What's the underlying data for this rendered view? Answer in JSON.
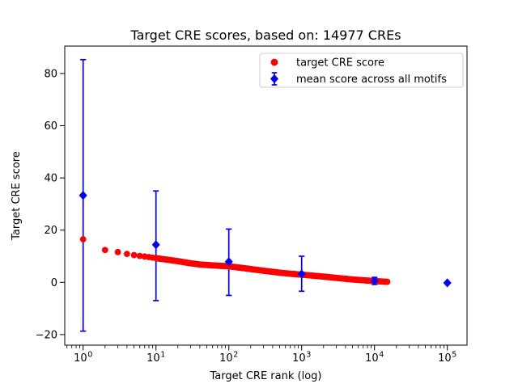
{
  "chart_data": {
    "type": "scatter",
    "title": "Target CRE scores, based on: 14977 CREs",
    "xlabel": "Target CRE rank (log)",
    "ylabel": "Target CRE score",
    "x_scale": "log",
    "grid": false,
    "xlim": [
      0.56,
      186000
    ],
    "ylim": [
      -24,
      90.5
    ],
    "x_ticks": [
      1,
      10,
      100,
      1000,
      10000,
      100000
    ],
    "x_tick_labels": [
      "10^0",
      "10^1",
      "10^2",
      "10^3",
      "10^4",
      "10^5"
    ],
    "y_ticks": [
      -20,
      0,
      20,
      40,
      60,
      80
    ],
    "n_cres": 14977,
    "series": [
      {
        "name": "target CRE score",
        "marker": "circle",
        "color": "#ff0000",
        "n_points": 14977,
        "anchor_points": [
          [
            1,
            16.5
          ],
          [
            2,
            12.4
          ],
          [
            3,
            11.6
          ],
          [
            4,
            10.9
          ],
          [
            5,
            10.45
          ],
          [
            6,
            10.1
          ],
          [
            7,
            9.9
          ],
          [
            8,
            9.7
          ],
          [
            9,
            9.45
          ],
          [
            10,
            9.25
          ],
          [
            15,
            8.6
          ],
          [
            20,
            8.1
          ],
          [
            30,
            7.3
          ],
          [
            40,
            6.85
          ],
          [
            60,
            6.5
          ],
          [
            100,
            6.15
          ],
          [
            200,
            5.1
          ],
          [
            300,
            4.45
          ],
          [
            500,
            3.7
          ],
          [
            700,
            3.3
          ],
          [
            1000,
            2.95
          ],
          [
            2000,
            2.2
          ],
          [
            3000,
            1.7
          ],
          [
            5000,
            1.1
          ],
          [
            7000,
            0.8
          ],
          [
            10000,
            0.5
          ],
          [
            14977,
            0.2
          ]
        ]
      },
      {
        "name": "mean score across all motifs",
        "marker": "diamond",
        "color": "#0000ff",
        "points": [
          {
            "rank": 1,
            "mean": 33.3,
            "err_low": -18.7,
            "err_high": 85.3
          },
          {
            "rank": 10,
            "mean": 14.4,
            "err_low": -7.0,
            "err_high": 35.0
          },
          {
            "rank": 100,
            "mean": 7.9,
            "err_low": -5.0,
            "err_high": 20.4
          },
          {
            "rank": 1000,
            "mean": 3.2,
            "err_low": -3.4,
            "err_high": 10.0
          },
          {
            "rank": 10000,
            "mean": 0.6,
            "err_low": -0.8,
            "err_high": 1.9
          },
          {
            "rank": 100000,
            "mean": -0.2,
            "err_low": -0.5,
            "err_high": 0.1
          }
        ]
      }
    ],
    "legend": {
      "position": "upper right",
      "entries": [
        {
          "label": "target CRE score",
          "marker": "circle",
          "color": "#ff0000"
        },
        {
          "label": "mean score across all motifs",
          "marker": "diamond-errorbar",
          "color": "#0000ff"
        }
      ]
    },
    "colors": {
      "dots": "#ff0000",
      "means": "#0000ff",
      "axes": "#000000",
      "legend_border": "#cccccc",
      "background": "#ffffff"
    }
  }
}
